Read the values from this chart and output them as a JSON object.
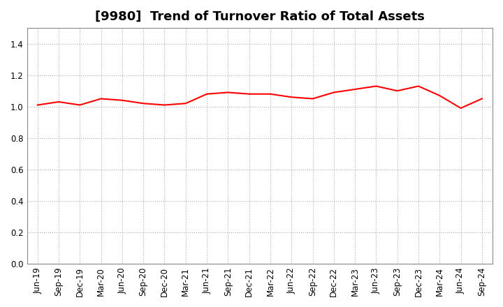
{
  "title": "[9980]  Trend of Turnover Ratio of Total Assets",
  "x_labels": [
    "Jun-19",
    "Sep-19",
    "Dec-19",
    "Mar-20",
    "Jun-20",
    "Sep-20",
    "Dec-20",
    "Mar-21",
    "Jun-21",
    "Sep-21",
    "Dec-21",
    "Mar-22",
    "Jun-22",
    "Sep-22",
    "Dec-22",
    "Mar-23",
    "Jun-23",
    "Sep-23",
    "Dec-23",
    "Mar-24",
    "Jun-24",
    "Sep-24"
  ],
  "y_values": [
    1.01,
    1.03,
    1.01,
    1.05,
    1.04,
    1.02,
    1.01,
    1.02,
    1.08,
    1.09,
    1.08,
    1.08,
    1.06,
    1.05,
    1.09,
    1.11,
    1.13,
    1.1,
    1.13,
    1.07,
    0.99,
    1.05
  ],
  "line_color": "#FF0000",
  "ylim": [
    0.0,
    1.5
  ],
  "yticks": [
    0.0,
    0.2,
    0.4,
    0.6,
    0.8,
    1.0,
    1.2,
    1.4
  ],
  "title_fontsize": 13,
  "tick_fontsize": 8.5,
  "background_color": "#ffffff",
  "grid_color": "#999999",
  "grid_major_color": "#aaaaaa"
}
